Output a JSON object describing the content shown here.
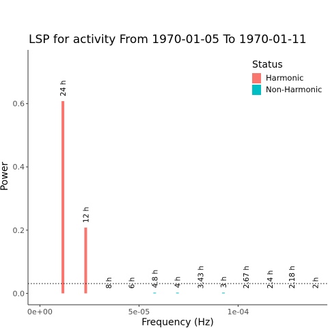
{
  "chart_data": {
    "type": "bar",
    "title": "LSP for  activity From 1970-01-05 To 1970-01-11",
    "xlabel": "Frequency (Hz)",
    "ylabel": "Power",
    "xlim": [
      -6e-06,
      0.000145
    ],
    "ylim": [
      -0.036,
      0.77
    ],
    "x_ticks": [
      {
        "value": 0,
        "label": "0e+00"
      },
      {
        "value": 5e-05,
        "label": "5e-05"
      },
      {
        "value": 0.0001,
        "label": "1e-04"
      }
    ],
    "y_ticks": [
      {
        "value": 0.0,
        "label": "0.0"
      },
      {
        "value": 0.2,
        "label": "0.2"
      },
      {
        "value": 0.4,
        "label": "0.4"
      },
      {
        "value": 0.6,
        "label": "0.6"
      }
    ],
    "threshold": 0.031,
    "legend": {
      "title": "Status",
      "position": "top-right",
      "entries": [
        {
          "name": "Harmonic",
          "color": "#F8766D"
        },
        {
          "name": "Non-Harmonic",
          "color": "#00BFC4"
        }
      ]
    },
    "bars": [
      {
        "x": 1.16e-05,
        "value": 0.608,
        "label": "24 h",
        "status": "Harmonic"
      },
      {
        "x": 2.31e-05,
        "value": 0.208,
        "label": "12 h",
        "status": "Harmonic"
      },
      {
        "x": 3.47e-05,
        "value": 0.0,
        "label": "8 h",
        "status": "Harmonic"
      },
      {
        "x": 4.63e-05,
        "value": 0.0,
        "label": "6 h",
        "status": "Harmonic"
      },
      {
        "x": 5.79e-05,
        "value": 0.002,
        "label": "4.8 h",
        "status": "Non-Harmonic"
      },
      {
        "x": 6.94e-05,
        "value": 0.002,
        "label": "4 h",
        "status": "Non-Harmonic"
      },
      {
        "x": 8.1e-05,
        "value": 0.0,
        "label": "3.43 h",
        "status": "Harmonic"
      },
      {
        "x": 9.26e-05,
        "value": 0.002,
        "label": "3 h",
        "status": "Non-Harmonic"
      },
      {
        "x": 0.000104,
        "value": 0.0,
        "label": "2.67 h",
        "status": "Harmonic"
      },
      {
        "x": 0.000116,
        "value": 0.0,
        "label": "2.4 h",
        "status": "Harmonic"
      },
      {
        "x": 0.000127,
        "value": 0.0,
        "label": "2.18 h",
        "status": "Harmonic"
      },
      {
        "x": 0.000139,
        "value": 0.0,
        "label": "2 h",
        "status": "Harmonic"
      }
    ]
  }
}
